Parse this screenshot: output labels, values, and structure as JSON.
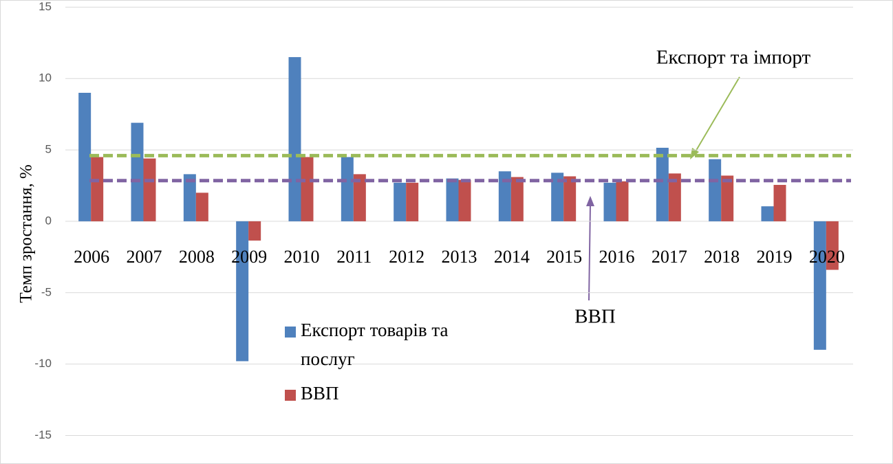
{
  "chart_data": {
    "type": "bar",
    "y_label": "Темп зростання, %",
    "categories": [
      "2006",
      "2007",
      "2008",
      "2009",
      "2010",
      "2011",
      "2012",
      "2013",
      "2014",
      "2015",
      "2016",
      "2017",
      "2018",
      "2019",
      "2020"
    ],
    "series": [
      {
        "name": "Експорт товарів та послуг",
        "color": "#4f81bd",
        "values": [
          9.0,
          6.9,
          3.3,
          -9.8,
          11.5,
          4.5,
          2.7,
          3.0,
          3.5,
          3.4,
          2.7,
          5.15,
          4.35,
          1.05,
          -9.0
        ]
      },
      {
        "name": "ВВП",
        "color": "#c0504d",
        "values": [
          4.5,
          4.4,
          2.0,
          -1.35,
          4.5,
          3.3,
          2.7,
          2.9,
          3.1,
          3.15,
          2.8,
          3.35,
          3.2,
          2.55,
          -3.4
        ]
      }
    ],
    "reference_lines": [
      {
        "label": "Експорт та імпорт",
        "value": 4.6,
        "color": "#9bbb59"
      },
      {
        "label": "ВВП",
        "value": 2.85,
        "color": "#8064a2"
      }
    ],
    "ylim": [
      -17,
      15.5
    ],
    "yticks": [
      -15,
      -10,
      -5,
      0,
      5,
      10,
      15
    ],
    "grid": true
  }
}
